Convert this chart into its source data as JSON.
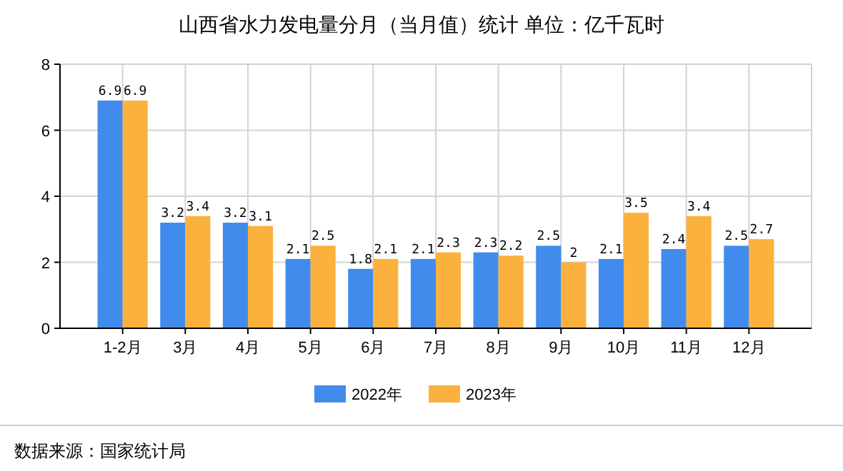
{
  "chart_data": {
    "type": "bar",
    "title": "山西省水力发电量分月（当月值）统计 单位：亿千瓦时",
    "categories": [
      "1-2月",
      "3月",
      "4月",
      "5月",
      "6月",
      "7月",
      "8月",
      "9月",
      "10月",
      "11月",
      "12月"
    ],
    "series": [
      {
        "name": "2022年",
        "color": "#418bed",
        "values": [
          6.9,
          3.2,
          3.2,
          2.1,
          1.8,
          2.1,
          2.3,
          2.5,
          2.1,
          2.4,
          2.5
        ]
      },
      {
        "name": "2023年",
        "color": "#fbb13e",
        "values": [
          6.9,
          3.4,
          3.1,
          2.5,
          2.1,
          2.3,
          2.2,
          2,
          3.5,
          3.4,
          2.7
        ]
      }
    ],
    "ylim": [
      0,
      8
    ],
    "yticks": [
      0,
      2,
      4,
      6,
      8
    ],
    "grid": true,
    "legend": "bottom",
    "data_labels": true,
    "annotations": [
      "数据来源：国家统计局"
    ]
  }
}
